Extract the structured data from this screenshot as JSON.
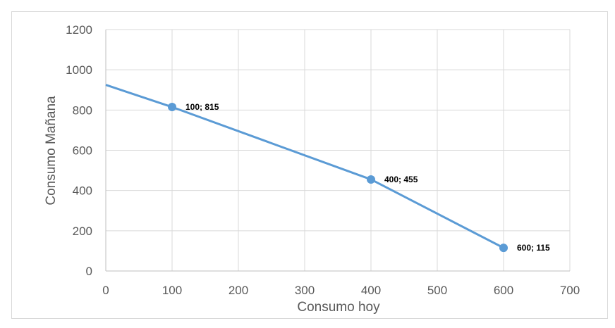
{
  "chart_data": {
    "type": "line",
    "title": "",
    "xlabel": "Consumo hoy",
    "ylabel": "Consumo Mañana",
    "xlim": [
      0,
      700
    ],
    "ylim": [
      0,
      1200
    ],
    "x_ticks": [
      "0",
      "100",
      "200",
      "300",
      "400",
      "500",
      "600",
      "700"
    ],
    "y_ticks": [
      "0",
      "200",
      "400",
      "600",
      "800",
      "1000",
      "1200"
    ],
    "grid": true,
    "legend": "none",
    "colors": {
      "series": "#5b9bd5",
      "grid": "#d9d9d9",
      "axis": "#bfbfbf"
    },
    "series": [
      {
        "line": [
          {
            "x": 0,
            "y": 925
          },
          {
            "x": 100,
            "y": 815
          },
          {
            "x": 400,
            "y": 455
          },
          {
            "x": 600,
            "y": 115
          }
        ],
        "markers": [
          {
            "x": 100,
            "y": 815,
            "label": "100; 815"
          },
          {
            "x": 400,
            "y": 455,
            "label": "400; 455"
          },
          {
            "x": 600,
            "y": 115,
            "label": "600; 115"
          }
        ]
      }
    ]
  }
}
